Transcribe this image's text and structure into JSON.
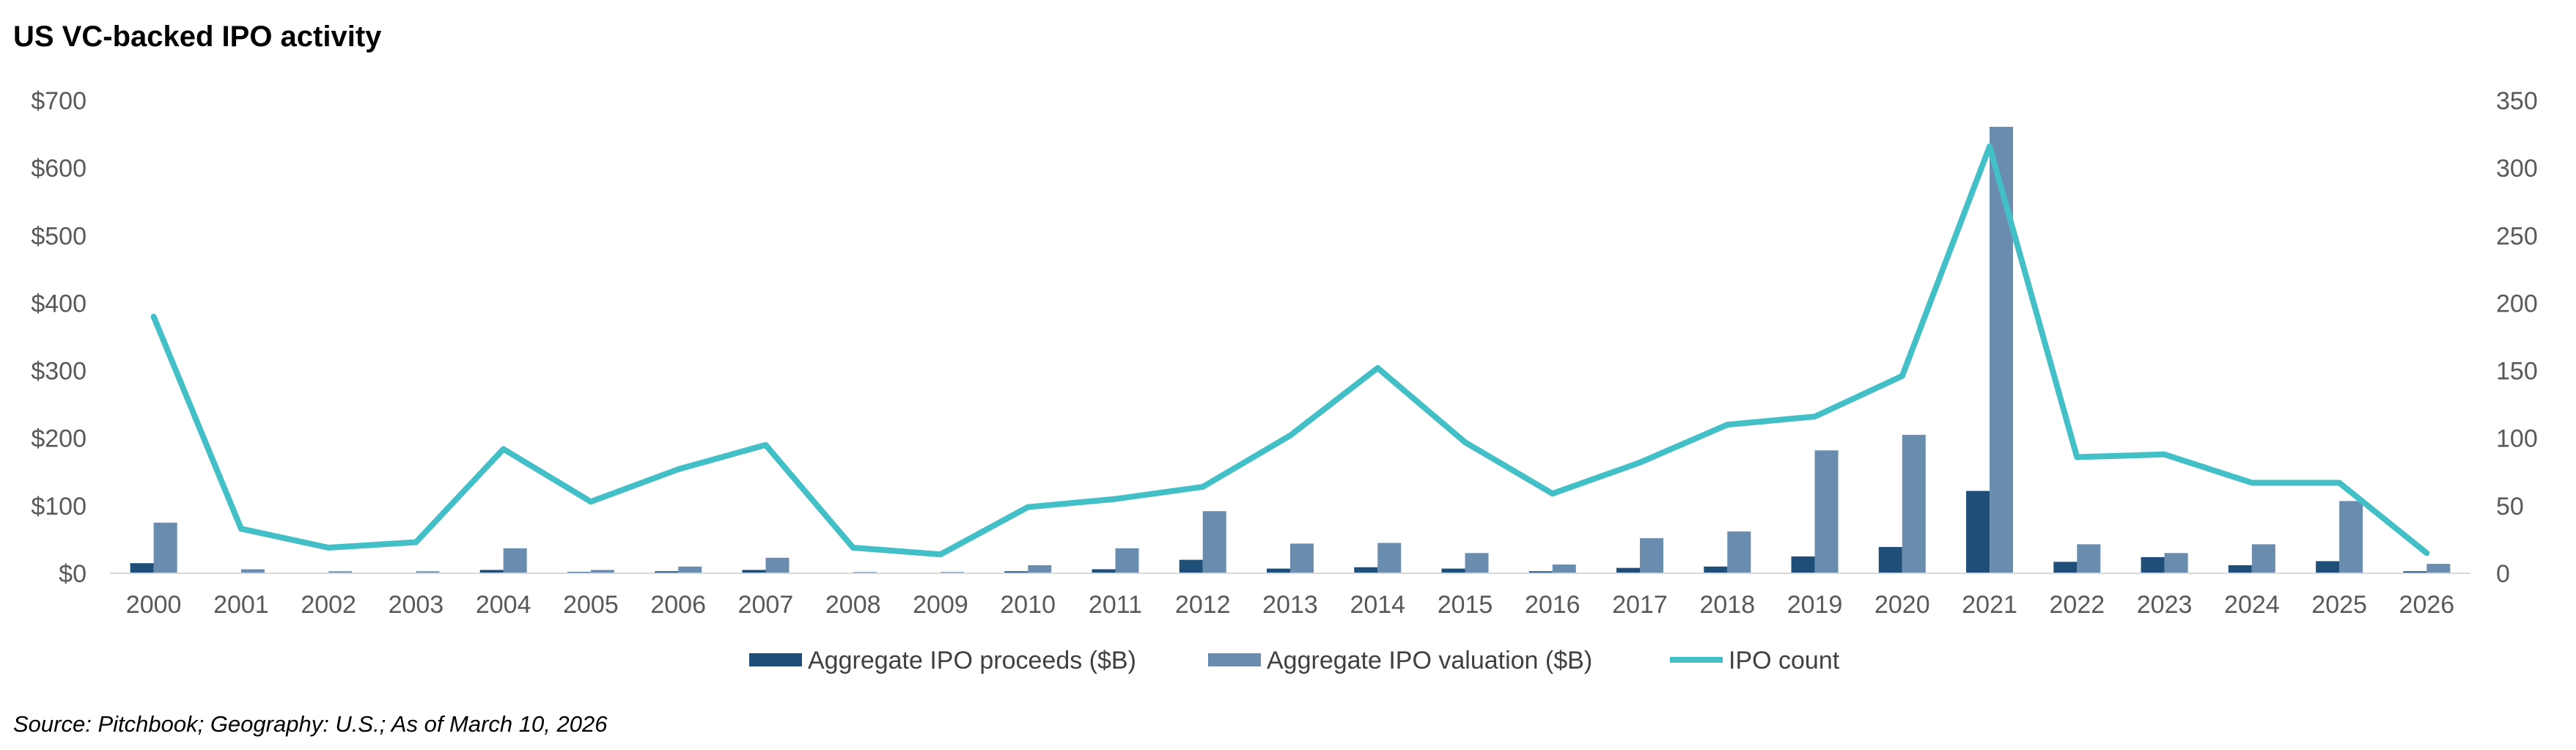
{
  "title": "US VC-backed IPO activity",
  "source": "Source: Pitchbook; Geography: U.S.; As of March 10, 2026",
  "colors": {
    "proceeds": "#1f4e79",
    "valuation": "#6a8cae",
    "count": "#43bfc7",
    "axis": "#d9d9d9",
    "text": "#595959"
  },
  "chart_data": {
    "type": "bar",
    "title": "US VC-backed IPO activity",
    "categories": [
      "2000",
      "2001",
      "2002",
      "2003",
      "2004",
      "2005",
      "2006",
      "2007",
      "2008",
      "2009",
      "2010",
      "2011",
      "2012",
      "2013",
      "2014",
      "2015",
      "2016",
      "2017",
      "2018",
      "2019",
      "2020",
      "2021",
      "2022",
      "2023",
      "2024",
      "2025",
      "2026"
    ],
    "series": [
      {
        "name": "Aggregate IPO proceeds ($B)",
        "type": "bar",
        "axis": "left",
        "values": [
          15,
          1,
          1,
          1,
          5,
          2,
          3,
          5,
          0.5,
          0.5,
          3,
          6,
          20,
          7,
          9,
          7,
          3,
          8,
          10,
          25,
          39,
          122,
          17,
          24,
          12,
          18,
          3
        ]
      },
      {
        "name": "Aggregate IPO valuation ($B)",
        "type": "bar",
        "axis": "left",
        "values": [
          75,
          6,
          3,
          3,
          37,
          5,
          10,
          23,
          2,
          2,
          12,
          37,
          92,
          44,
          45,
          30,
          13,
          52,
          62,
          182,
          205,
          661,
          43,
          30,
          43,
          107,
          14
        ]
      },
      {
        "name": "IPO count",
        "type": "line",
        "axis": "right",
        "values": [
          190,
          33,
          19,
          23,
          92,
          53,
          77,
          95,
          19,
          14,
          49,
          55,
          64,
          102,
          152,
          97,
          59,
          82,
          110,
          116,
          146,
          316,
          86,
          88,
          67,
          67,
          15
        ]
      }
    ],
    "y_left": {
      "min": 0,
      "max": 700,
      "step": 100,
      "tick_labels": [
        "$0",
        "$100",
        "$200",
        "$300",
        "$400",
        "$500",
        "$600",
        "$700"
      ]
    },
    "y_right": {
      "min": 0,
      "max": 350,
      "step": 50,
      "tick_labels": [
        "0",
        "50",
        "100",
        "150",
        "200",
        "250",
        "300",
        "350"
      ]
    },
    "grid": false,
    "legend_position": "bottom"
  }
}
